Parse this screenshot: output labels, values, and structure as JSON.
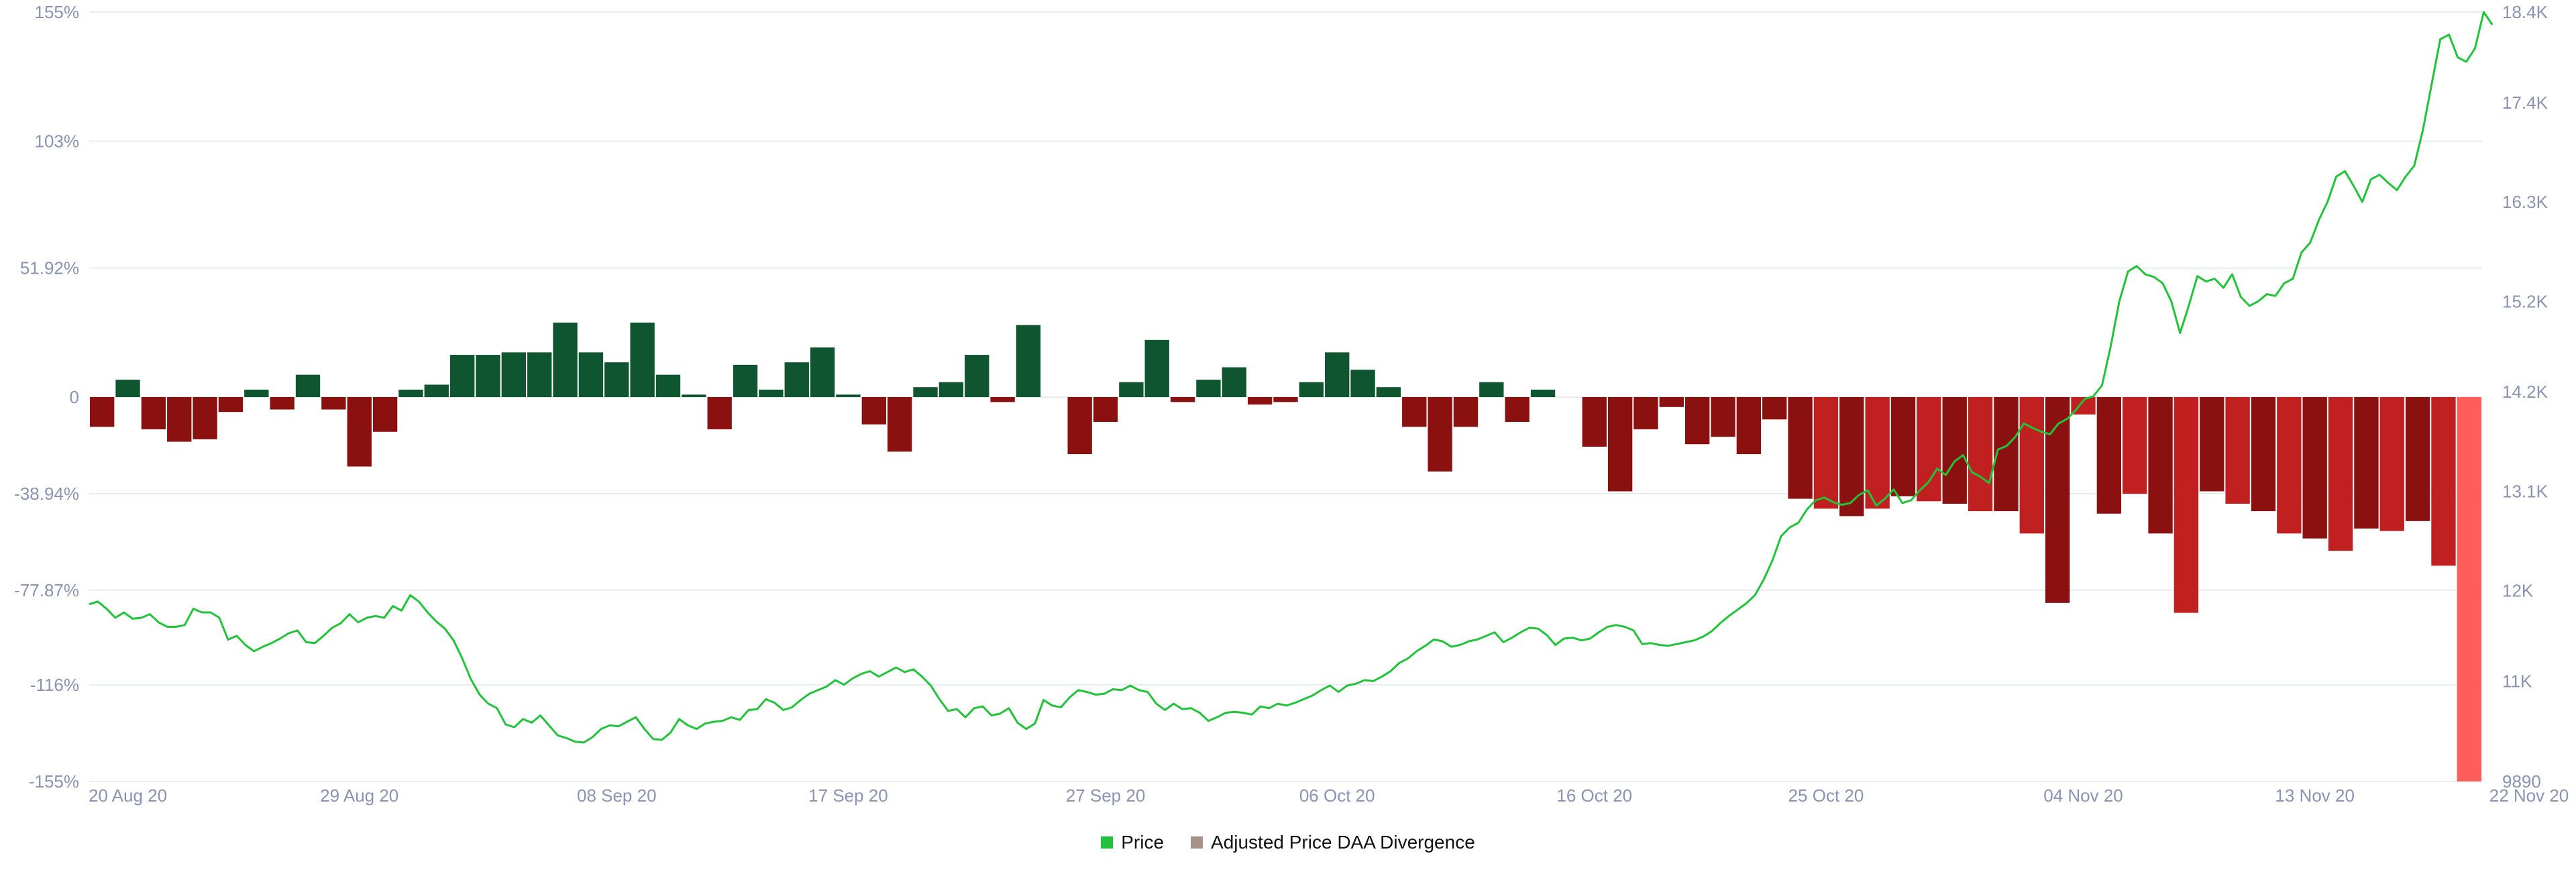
{
  "chart_data": {
    "type": "bar+line",
    "title": "",
    "colors": {
      "price_line": "#22c33b",
      "positive_bar": "#0f5530",
      "negative_bar_dark": "#8b1010",
      "negative_bar_mid": "#c02020",
      "negative_bar_last": "#ff5c5c",
      "legend_price": "#21c13c",
      "legend_divergence": "#a89088",
      "axis_text": "#8a93b3",
      "gridline": "#e8ebf2"
    },
    "x_labels": [
      "20 Aug 20",
      "29 Aug 20",
      "08 Sep 20",
      "17 Sep 20",
      "27 Sep 20",
      "06 Oct 20",
      "16 Oct 20",
      "25 Oct 20",
      "04 Nov 20",
      "13 Nov 20",
      "22 Nov 20"
    ],
    "start_date": "2020-08-19",
    "left_axis": {
      "ticks": [
        "155%",
        "103%",
        "51.92%",
        "0",
        "-38.94%",
        "-77.87%",
        "-116%",
        "-155%"
      ],
      "tick_values": [
        155,
        103,
        51.92,
        0,
        -38.94,
        -77.87,
        -116,
        -155
      ],
      "range": [
        -155,
        155
      ]
    },
    "right_axis": {
      "ticks": [
        "18.4K",
        "17.4K",
        "16.3K",
        "15.2K",
        "14.2K",
        "13.1K",
        "12K",
        "11K",
        "9890"
      ],
      "tick_values": [
        18400,
        17400,
        16300,
        15200,
        14200,
        13100,
        12000,
        11000,
        9890
      ],
      "range": [
        9890,
        18400
      ]
    },
    "series": [
      {
        "name": "Adjusted Price DAA Divergence",
        "type": "bar",
        "axis": "left",
        "values": [
          -12,
          7,
          -13,
          -18,
          -17,
          -6,
          3,
          -5,
          9,
          -5,
          -28,
          -14,
          3,
          5,
          17,
          17,
          18,
          18,
          30,
          18,
          14,
          30,
          9,
          1,
          -13,
          13,
          3,
          14,
          20,
          1,
          -11,
          -22,
          4,
          6,
          17,
          -2,
          29,
          0,
          -23,
          -10,
          6,
          23,
          -2,
          7,
          12,
          -3,
          -2,
          6,
          18,
          11,
          4,
          -12,
          -30,
          -12,
          6,
          -10,
          3,
          0,
          -20,
          -38,
          -13,
          -4,
          -19,
          -16,
          -23,
          -9,
          -41,
          -45,
          -48,
          -45,
          -40,
          -42,
          -43,
          -46,
          -46,
          -55,
          -83,
          -7,
          -47,
          -39,
          -55,
          -87,
          -38,
          -43,
          -46,
          -55,
          -57,
          -62,
          -53,
          -54,
          -50,
          -68,
          -155
        ]
      },
      {
        "name": "Price",
        "type": "line",
        "axis": "right",
        "x_start": 0,
        "x_end": 94,
        "values": [
          11850,
          11880,
          11800,
          11700,
          11760,
          11690,
          11700,
          11740,
          11650,
          11600,
          11600,
          11620,
          11800,
          11760,
          11760,
          11700,
          11460,
          11500,
          11400,
          11330,
          11380,
          11420,
          11470,
          11530,
          11560,
          11430,
          11420,
          11500,
          11590,
          11640,
          11740,
          11650,
          11700,
          11720,
          11700,
          11830,
          11780,
          11950,
          11880,
          11760,
          11660,
          11580,
          11450,
          11250,
          11020,
          10850,
          10750,
          10700,
          10520,
          10490,
          10580,
          10540,
          10620,
          10510,
          10400,
          10370,
          10330,
          10320,
          10380,
          10470,
          10510,
          10500,
          10550,
          10600,
          10470,
          10360,
          10350,
          10430,
          10580,
          10510,
          10470,
          10530,
          10550,
          10560,
          10600,
          10570,
          10680,
          10690,
          10800,
          10760,
          10680,
          10710,
          10790,
          10860,
          10900,
          10940,
          11010,
          10960,
          11030,
          11080,
          11110,
          11050,
          11100,
          11150,
          11100,
          11130,
          11050,
          10950,
          10800,
          10670,
          10690,
          10600,
          10700,
          10720,
          10620,
          10640,
          10700,
          10540,
          10470,
          10530,
          10790,
          10730,
          10710,
          10820,
          10900,
          10880,
          10850,
          10860,
          10910,
          10900,
          10950,
          10900,
          10880,
          10750,
          10680,
          10750,
          10690,
          10700,
          10650,
          10560,
          10600,
          10650,
          10660,
          10650,
          10630,
          10720,
          10700,
          10750,
          10730,
          10760,
          10800,
          10840,
          10900,
          10950,
          10880,
          10950,
          10970,
          11010,
          11000,
          11050,
          11110,
          11200,
          11250,
          11330,
          11390,
          11460,
          11440,
          11380,
          11400,
          11440,
          11460,
          11500,
          11540,
          11430,
          11480,
          11540,
          11590,
          11580,
          11510,
          11400,
          11470,
          11480,
          11450,
          11470,
          11540,
          11600,
          11620,
          11600,
          11560,
          11410,
          11420,
          11400,
          11390,
          11410,
          11430,
          11450,
          11490,
          11550,
          11640,
          11720,
          11790,
          11860,
          11950,
          12120,
          12330,
          12600,
          12700,
          12750,
          12900,
          13000,
          13030,
          12980,
          12950,
          12970,
          13060,
          13110,
          12940,
          13020,
          13120,
          12970,
          13000,
          13110,
          13200,
          13350,
          13280,
          13430,
          13500,
          13310,
          13260,
          13190,
          13560,
          13600,
          13700,
          13850,
          13800,
          13760,
          13730,
          13850,
          13900,
          14000,
          14120,
          14150,
          14270,
          14700,
          15200,
          15530,
          15590,
          15500,
          15470,
          15400,
          15200,
          14850,
          15150,
          15480,
          15420,
          15450,
          15350,
          15500,
          15250,
          15150,
          15200,
          15280,
          15260,
          15400,
          15450,
          15740,
          15850,
          16100,
          16300,
          16580,
          16640,
          16480,
          16300,
          16550,
          16600,
          16510,
          16430,
          16580,
          16700,
          17100,
          17600,
          18100,
          18150,
          17900,
          17850,
          18000,
          18400,
          18260
        ]
      }
    ],
    "legend": [
      {
        "label": "Price",
        "color": "#21c13c"
      },
      {
        "label": "Adjusted Price DAA Divergence",
        "color": "#a89088"
      }
    ]
  }
}
